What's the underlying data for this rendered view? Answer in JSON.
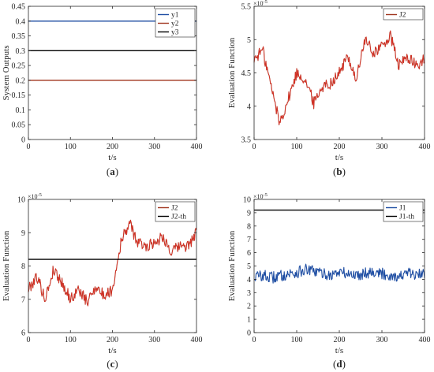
{
  "chart_data": [
    {
      "type": "line",
      "panel": "(a)",
      "caption_letter": "a",
      "xlabel": "t/s",
      "ylabel": "System Outputs",
      "xlim": [
        0,
        400
      ],
      "ylim": [
        0,
        0.45
      ],
      "xticks": [
        "0",
        "100",
        "200",
        "300",
        "400"
      ],
      "yticks": [
        "0",
        "0.05",
        "0.1",
        "0.15",
        "0.2",
        "0.25",
        "0.3",
        "0.35",
        "0.4",
        "0.45"
      ],
      "exponent_label": "",
      "legend_position": "upper-right",
      "series": [
        {
          "name": "y1",
          "color": "#1f4ea3",
          "x": [
            0,
            400
          ],
          "y": [
            0.4,
            0.4
          ]
        },
        {
          "name": "y2",
          "color": "#a0361f",
          "x": [
            0,
            400
          ],
          "y": [
            0.2,
            0.2
          ]
        },
        {
          "name": "y3",
          "color": "#000000",
          "x": [
            0,
            400
          ],
          "y": [
            0.3,
            0.3
          ]
        }
      ]
    },
    {
      "type": "line",
      "panel": "(b)",
      "caption_letter": "b",
      "xlabel": "t/s",
      "ylabel": "Evaluation Function",
      "xlim": [
        0,
        400
      ],
      "ylim": [
        3.5,
        5.5
      ],
      "xticks": [
        "0",
        "100",
        "200",
        "300",
        "400"
      ],
      "yticks": [
        "3.5",
        "4",
        "4.5",
        "5",
        "5.5"
      ],
      "exponent_label": "×10",
      "exponent_power": "-5",
      "legend_position": "upper-right",
      "series": [
        {
          "name": "J2",
          "color": "#a0361f",
          "highlight": "#e8302a",
          "x": [
            0,
            20,
            40,
            60,
            80,
            100,
            120,
            140,
            160,
            180,
            200,
            220,
            240,
            260,
            280,
            300,
            320,
            340,
            360,
            380,
            400
          ],
          "y": [
            4.7,
            4.85,
            4.3,
            3.75,
            4.1,
            4.5,
            4.4,
            4.05,
            4.3,
            4.35,
            4.5,
            4.75,
            4.4,
            5.0,
            4.8,
            4.9,
            5.05,
            4.6,
            4.75,
            4.6,
            4.7
          ]
        }
      ]
    },
    {
      "type": "line",
      "panel": "(c)",
      "caption_letter": "c",
      "xlabel": "t/s",
      "ylabel": "Evaluation Function",
      "xlim": [
        0,
        400
      ],
      "ylim": [
        6,
        10
      ],
      "xticks": [
        "0",
        "100",
        "200",
        "300",
        "400"
      ],
      "yticks": [
        "6",
        "7",
        "8",
        "9",
        "10"
      ],
      "exponent_label": "×10",
      "exponent_power": "-5",
      "legend_position": "upper-right",
      "series": [
        {
          "name": "J2",
          "color": "#a0361f",
          "highlight": "#e8302a",
          "x": [
            0,
            20,
            40,
            60,
            80,
            100,
            120,
            140,
            160,
            180,
            200,
            220,
            240,
            260,
            280,
            300,
            320,
            340,
            360,
            380,
            400
          ],
          "y": [
            7.3,
            7.7,
            7.0,
            7.9,
            7.5,
            7.0,
            7.3,
            6.9,
            7.4,
            7.1,
            7.3,
            8.7,
            9.3,
            8.7,
            8.6,
            8.7,
            8.9,
            8.4,
            8.6,
            8.6,
            9.0
          ]
        },
        {
          "name": "J2-th",
          "color": "#000000",
          "x": [
            0,
            400
          ],
          "y": [
            8.2,
            8.2
          ]
        }
      ]
    },
    {
      "type": "line",
      "panel": "(d)",
      "caption_letter": "d",
      "xlabel": "t/s",
      "ylabel": "Evaluation Function",
      "xlim": [
        0,
        400
      ],
      "ylim": [
        0,
        10
      ],
      "xticks": [
        "0",
        "100",
        "200",
        "300",
        "400"
      ],
      "yticks": [
        "0",
        "1",
        "2",
        "3",
        "4",
        "5",
        "6",
        "7",
        "8",
        "9",
        "10"
      ],
      "exponent_label": "×10",
      "exponent_power": "-5",
      "legend_position": "upper-right",
      "series": [
        {
          "name": "J1",
          "color": "#1f4ea3",
          "x": [
            0,
            20,
            40,
            60,
            80,
            100,
            120,
            140,
            160,
            180,
            200,
            220,
            240,
            260,
            280,
            300,
            320,
            340,
            360,
            380,
            400
          ],
          "y": [
            4.2,
            4.3,
            4.1,
            4.25,
            4.4,
            4.5,
            4.7,
            4.6,
            4.45,
            4.3,
            4.55,
            4.4,
            4.3,
            4.5,
            4.6,
            4.4,
            4.3,
            4.2,
            4.45,
            4.3,
            4.4
          ]
        },
        {
          "name": "J1-th",
          "color": "#000000",
          "x": [
            0,
            400
          ],
          "y": [
            9.2,
            9.2
          ]
        }
      ]
    }
  ]
}
